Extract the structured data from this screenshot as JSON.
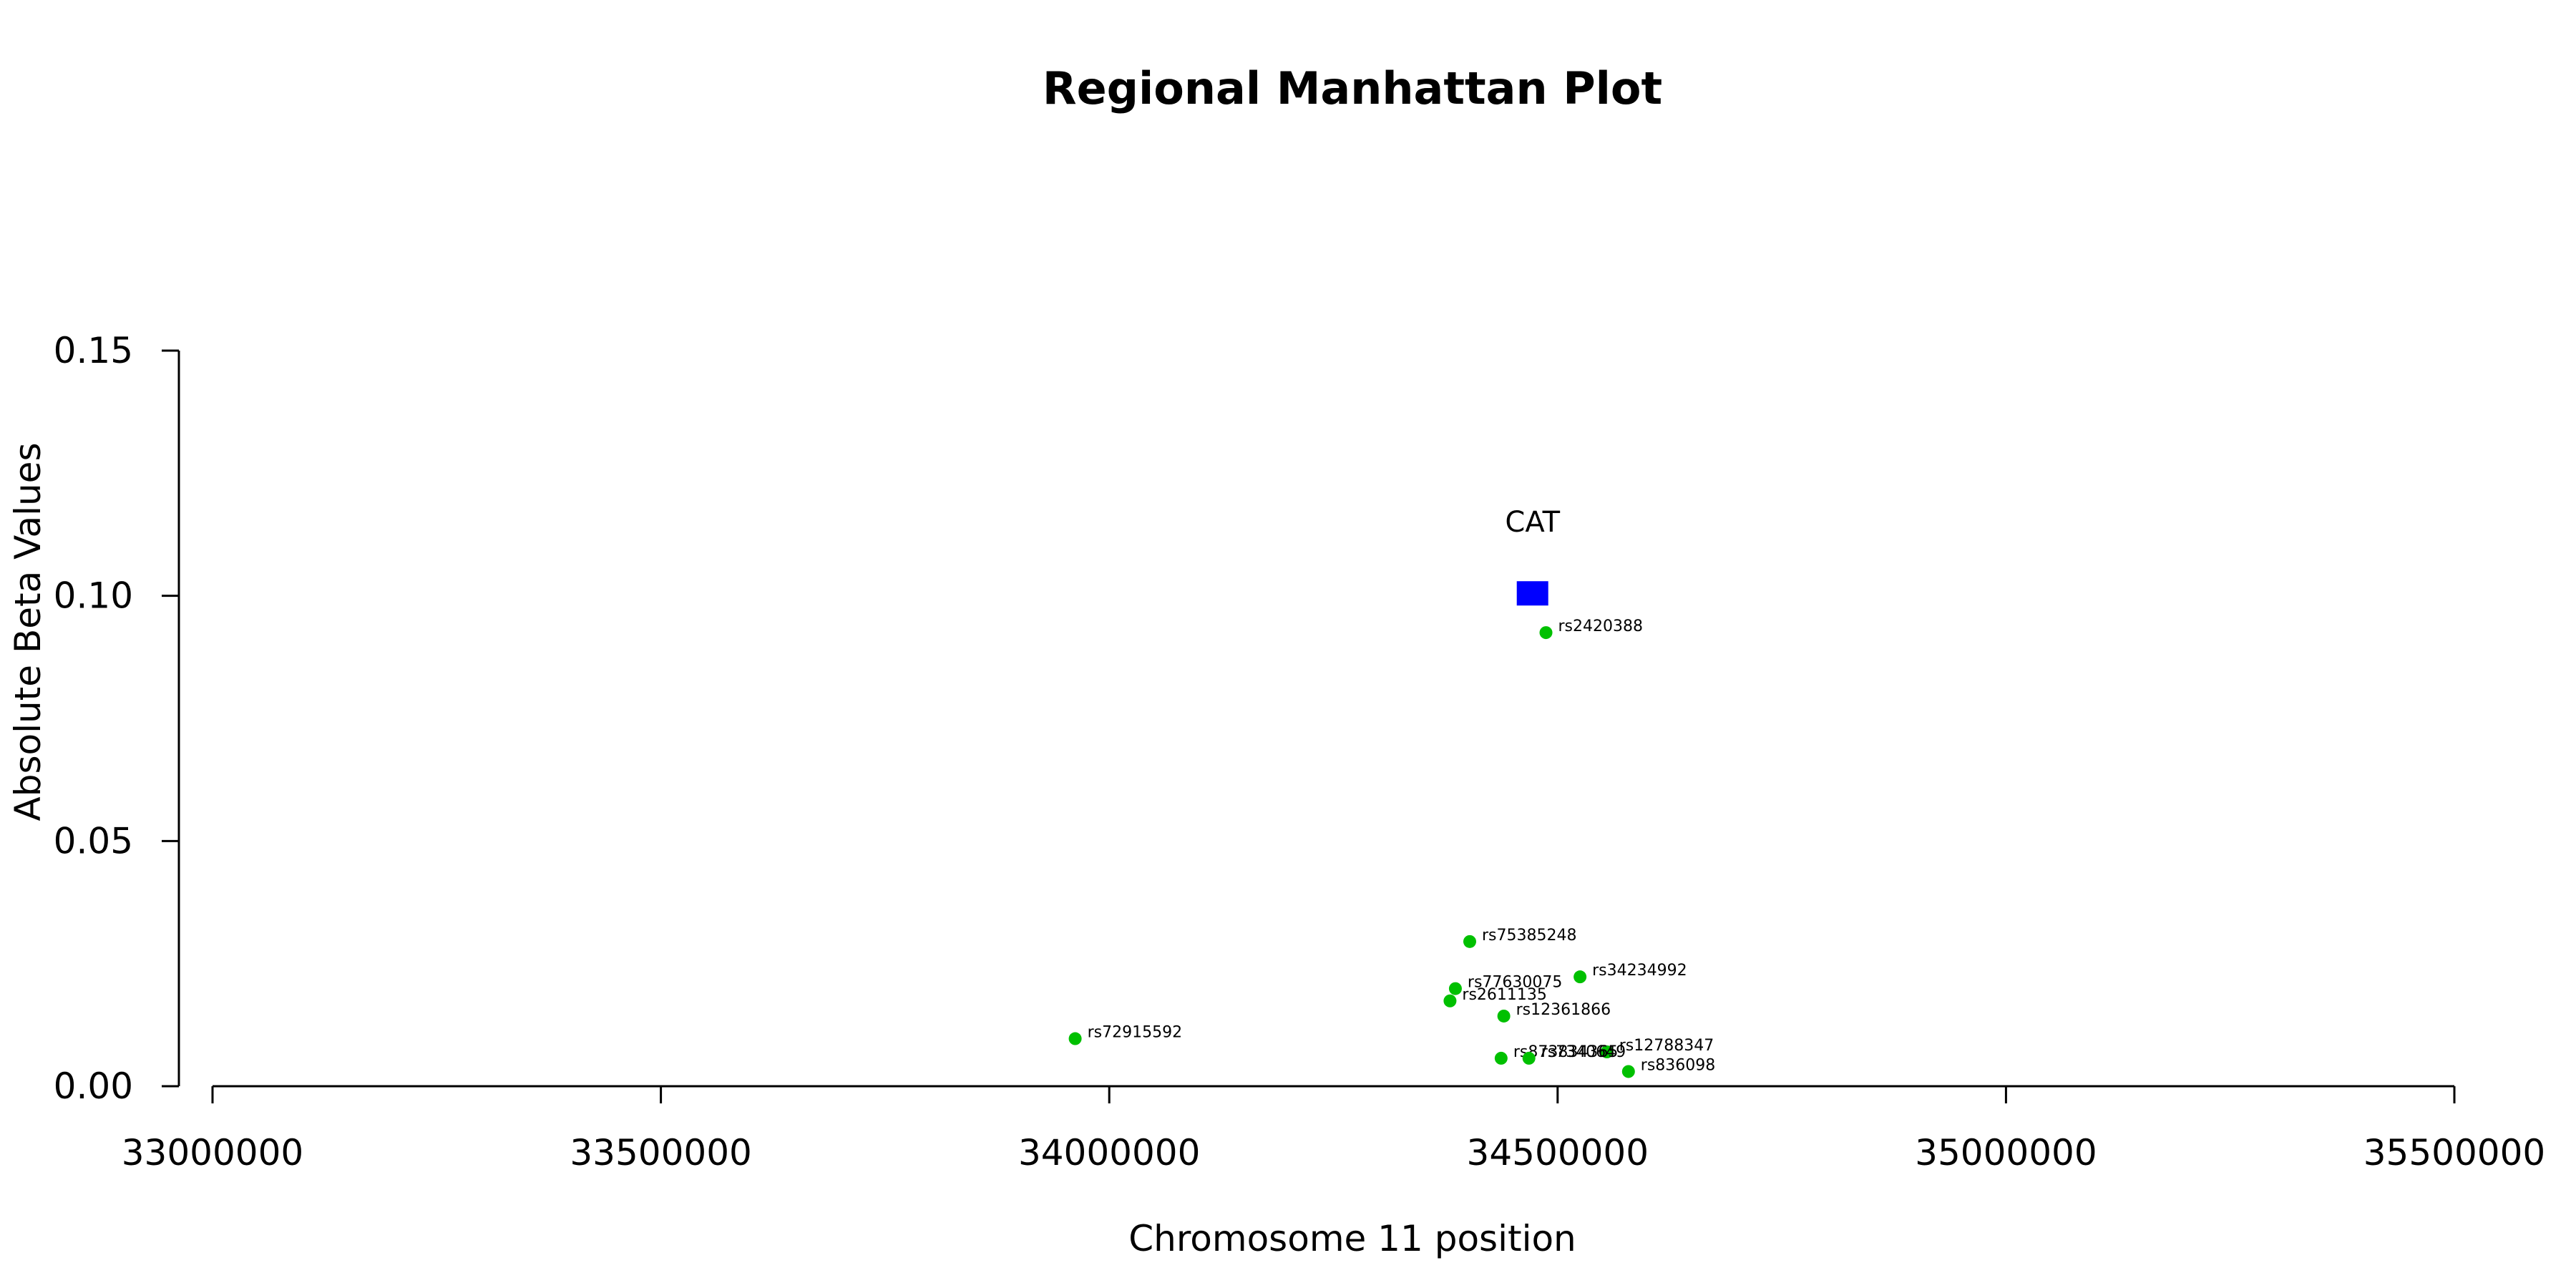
{
  "chart_data": {
    "type": "scatter",
    "title": "Regional Manhattan Plot",
    "xlabel": "Chromosome 11 position",
    "ylabel": "Absolute Beta Values",
    "xlim": [
      33000000,
      35500000
    ],
    "ylim": [
      0,
      0.15
    ],
    "xticks": [
      33000000,
      33500000,
      34000000,
      34500000,
      35000000,
      35500000
    ],
    "xtick_labels": [
      "33000000",
      "33500000",
      "34000000",
      "34500000",
      "35000000",
      "35500000"
    ],
    "yticks": [
      0,
      0.05,
      0.1,
      0.15
    ],
    "ytick_labels": [
      "0.00",
      "0.05",
      "0.10",
      "0.15"
    ],
    "grid": false,
    "point_color": "#00c000",
    "gene_color": "#0000ff",
    "gene": {
      "name": "CAT",
      "x": 34472000,
      "y": 0.1005
    },
    "points": [
      {
        "label": "rs2420388",
        "x": 34487000,
        "y": 0.0925
      },
      {
        "label": "rs75385248",
        "x": 34402000,
        "y": 0.0295
      },
      {
        "label": "rs34234992",
        "x": 34525000,
        "y": 0.0223
      },
      {
        "label": "rs77630075",
        "x": 34386000,
        "y": 0.0199
      },
      {
        "label": "rs2611135",
        "x": 34380000,
        "y": 0.0174
      },
      {
        "label": "rs12361866",
        "x": 34440000,
        "y": 0.0143
      },
      {
        "label": "rs72915592",
        "x": 33962000,
        "y": 0.0097
      },
      {
        "label": "rs12788347",
        "x": 34555000,
        "y": 0.007
      },
      {
        "label": "rs873834365",
        "x": 34437000,
        "y": 0.0057
      },
      {
        "label": "rs7340649",
        "x": 34468000,
        "y": 0.0057
      },
      {
        "label": "rs836098",
        "x": 34579000,
        "y": 0.003
      }
    ]
  }
}
